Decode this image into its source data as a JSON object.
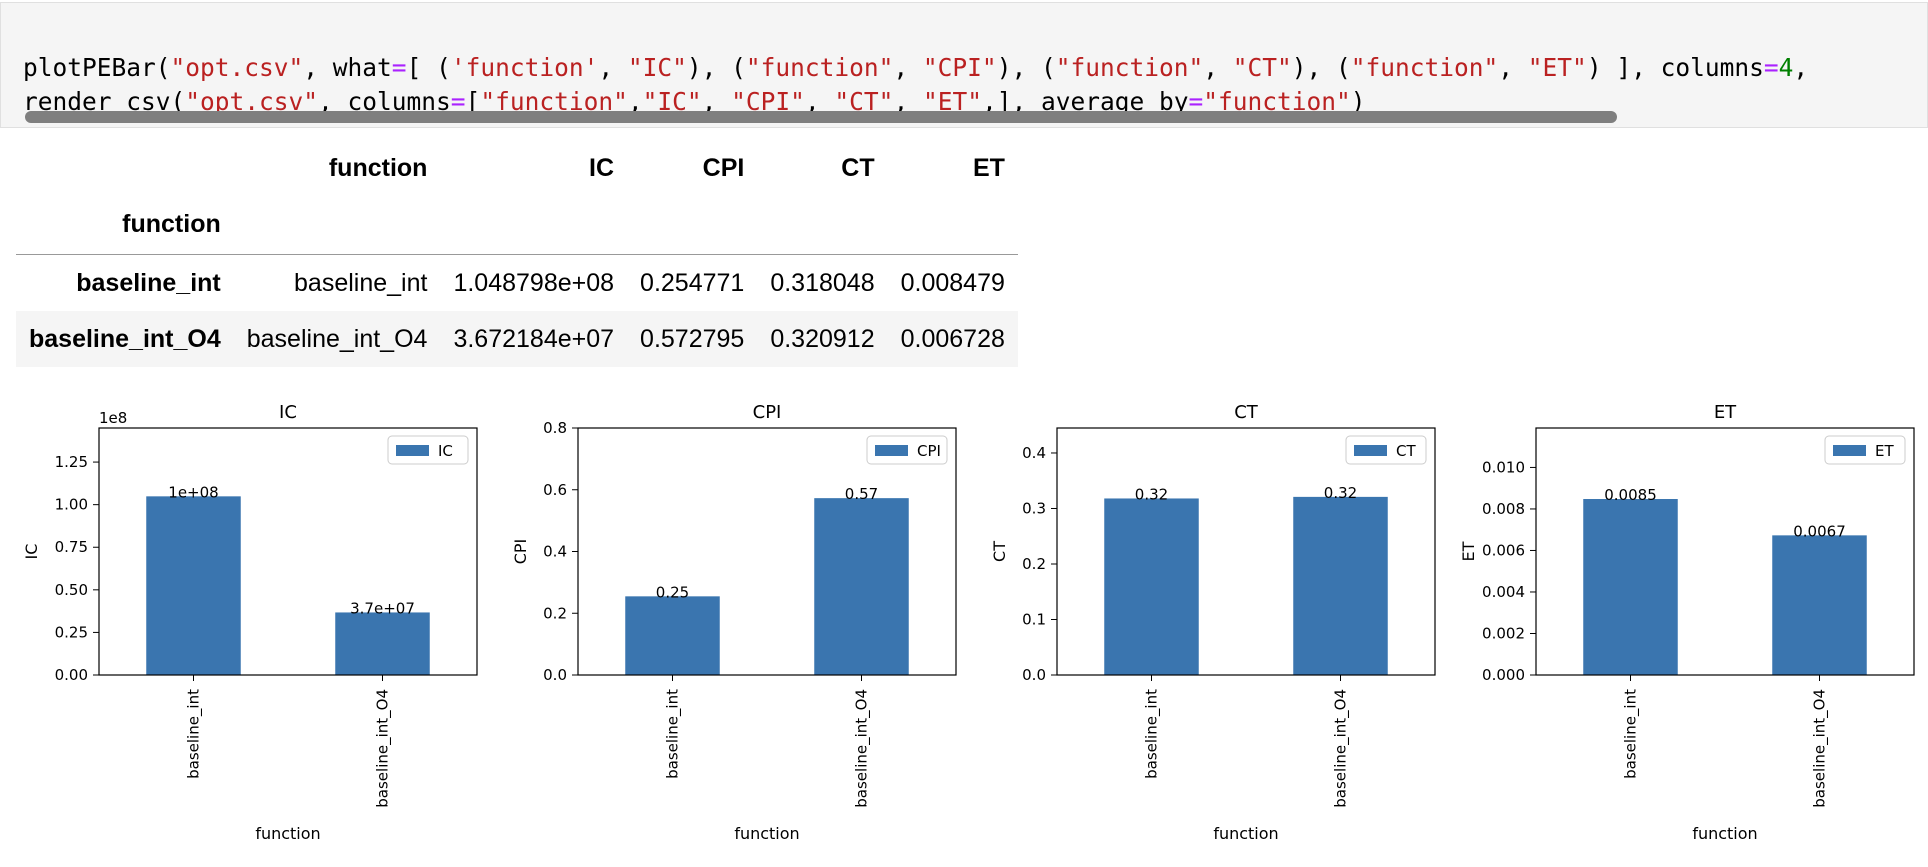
{
  "code": {
    "line1": [
      {
        "t": "plotPEBar(",
        "c": ""
      },
      {
        "t": "\"opt.csv\"",
        "c": "s"
      },
      {
        "t": ", what",
        "c": ""
      },
      {
        "t": "=",
        "c": "o"
      },
      {
        "t": "[ (",
        "c": ""
      },
      {
        "t": "'function'",
        "c": "s"
      },
      {
        "t": ", ",
        "c": ""
      },
      {
        "t": "\"IC\"",
        "c": "s"
      },
      {
        "t": "), (",
        "c": ""
      },
      {
        "t": "\"function\"",
        "c": "s"
      },
      {
        "t": ", ",
        "c": ""
      },
      {
        "t": "\"CPI\"",
        "c": "s"
      },
      {
        "t": "), (",
        "c": ""
      },
      {
        "t": "\"function\"",
        "c": "s"
      },
      {
        "t": ", ",
        "c": ""
      },
      {
        "t": "\"CT\"",
        "c": "s"
      },
      {
        "t": "), (",
        "c": ""
      },
      {
        "t": "\"function\"",
        "c": "s"
      },
      {
        "t": ", ",
        "c": ""
      },
      {
        "t": "\"ET\"",
        "c": "s"
      },
      {
        "t": ") ], columns",
        "c": ""
      },
      {
        "t": "=",
        "c": "o"
      },
      {
        "t": "4",
        "c": "n"
      },
      {
        "t": ",",
        "c": ""
      }
    ],
    "line2": [
      {
        "t": "render_csv(",
        "c": ""
      },
      {
        "t": "\"opt.csv\"",
        "c": "s"
      },
      {
        "t": ", columns",
        "c": ""
      },
      {
        "t": "=",
        "c": "o"
      },
      {
        "t": "[",
        "c": ""
      },
      {
        "t": "\"function\"",
        "c": "s"
      },
      {
        "t": ",",
        "c": ""
      },
      {
        "t": "\"IC\"",
        "c": "s"
      },
      {
        "t": ", ",
        "c": ""
      },
      {
        "t": "\"CPI\"",
        "c": "s"
      },
      {
        "t": ", ",
        "c": ""
      },
      {
        "t": "\"CT\"",
        "c": "s"
      },
      {
        "t": ", ",
        "c": ""
      },
      {
        "t": "\"ET\"",
        "c": "s"
      },
      {
        "t": ",], average_by",
        "c": ""
      },
      {
        "t": "=",
        "c": "o"
      },
      {
        "t": "\"function\"",
        "c": "s"
      },
      {
        "t": ")",
        "c": ""
      }
    ]
  },
  "table": {
    "columns": [
      "function",
      "IC",
      "CPI",
      "CT",
      "ET"
    ],
    "index_name": "function",
    "rows": [
      {
        "index": "baseline_int",
        "cells": [
          "baseline_int",
          "1.048798e+08",
          "0.254771",
          "0.318048",
          "0.008479"
        ]
      },
      {
        "index": "baseline_int_O4",
        "cells": [
          "baseline_int_O4",
          "3.672184e+07",
          "0.572795",
          "0.320912",
          "0.006728"
        ]
      }
    ]
  },
  "bar_color": "#3a75af",
  "chart_data": [
    {
      "type": "bar",
      "title": "IC",
      "xlabel": "function",
      "ylabel": "IC",
      "categories": [
        "baseline_int",
        "baseline_int_O4"
      ],
      "series": [
        {
          "name": "IC",
          "values": [
            1.048798,
            0.3672184
          ]
        }
      ],
      "value_labels": [
        "1e+08",
        "3.7e+07"
      ],
      "offset_label": "1e8",
      "ylim": [
        0,
        1.45
      ],
      "yticks": [
        0,
        0.25,
        0.5,
        0.75,
        1.0,
        1.25
      ],
      "ytick_labels": [
        "0.00",
        "0.25",
        "0.50",
        "0.75",
        "1.00",
        "1.25"
      ],
      "legend": "upper right"
    },
    {
      "type": "bar",
      "title": "CPI",
      "xlabel": "function",
      "ylabel": "CPI",
      "categories": [
        "baseline_int",
        "baseline_int_O4"
      ],
      "series": [
        {
          "name": "CPI",
          "values": [
            0.254771,
            0.572795
          ]
        }
      ],
      "value_labels": [
        "0.25",
        "0.57"
      ],
      "offset_label": "",
      "ylim": [
        0,
        0.8
      ],
      "yticks": [
        0,
        0.2,
        0.4,
        0.6,
        0.8
      ],
      "ytick_labels": [
        "0.0",
        "0.2",
        "0.4",
        "0.6",
        "0.8"
      ],
      "legend": "upper right"
    },
    {
      "type": "bar",
      "title": "CT",
      "xlabel": "function",
      "ylabel": "CT",
      "categories": [
        "baseline_int",
        "baseline_int_O4"
      ],
      "series": [
        {
          "name": "CT",
          "values": [
            0.318048,
            0.320912
          ]
        }
      ],
      "value_labels": [
        "0.32",
        "0.32"
      ],
      "offset_label": "",
      "ylim": [
        0,
        0.445
      ],
      "yticks": [
        0,
        0.1,
        0.2,
        0.3,
        0.4
      ],
      "ytick_labels": [
        "0.0",
        "0.1",
        "0.2",
        "0.3",
        "0.4"
      ],
      "legend": "upper right"
    },
    {
      "type": "bar",
      "title": "ET",
      "xlabel": "function",
      "ylabel": "ET",
      "categories": [
        "baseline_int",
        "baseline_int_O4"
      ],
      "series": [
        {
          "name": "ET",
          "values": [
            0.008479,
            0.006728
          ]
        }
      ],
      "value_labels": [
        "0.0085",
        "0.0067"
      ],
      "offset_label": "",
      "ylim": [
        0,
        0.0119
      ],
      "yticks": [
        0,
        0.002,
        0.004,
        0.006,
        0.008,
        0.01
      ],
      "ytick_labels": [
        "0.000",
        "0.002",
        "0.004",
        "0.006",
        "0.008",
        "0.010"
      ],
      "legend": "upper right"
    }
  ]
}
